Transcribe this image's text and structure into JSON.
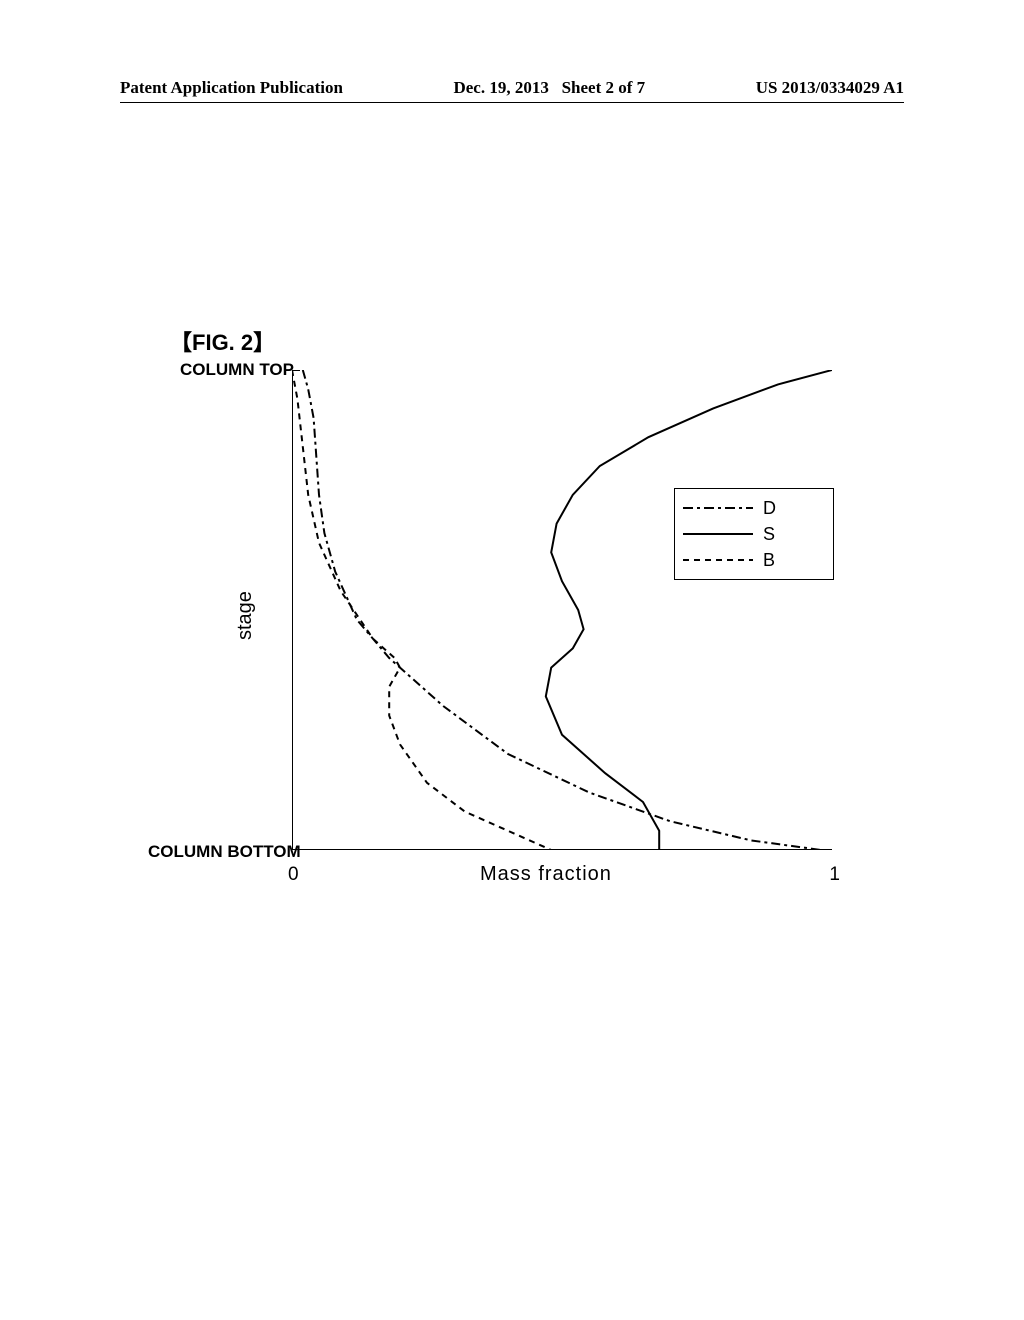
{
  "header": {
    "pub_label": "Patent Application Publication",
    "pub_date": "Dec. 19, 2013",
    "sheet": "Sheet 2 of 7",
    "pub_number": "US 2013/0334029 A1"
  },
  "figure": {
    "label_prefix": "【",
    "label_text": "FIG. 2",
    "label_suffix": "】"
  },
  "chart": {
    "type": "line",
    "y_top": "COLUMN TOP",
    "y_bottom": "COLUMN BOTTOM",
    "y_axis_title": "stage",
    "x_axis_title": "Mass fraction",
    "x_tick_min": "0",
    "x_tick_max": "1",
    "xlim": [
      0,
      1
    ],
    "background_color": "#ffffff",
    "axis_color": "#000000",
    "axis_width": 2,
    "series": {
      "D": {
        "label": "D",
        "color": "#000000",
        "width": 2,
        "dash": "9 4 3 4",
        "dash_legend": "10 4 3 4",
        "points": [
          [
            0.02,
            0.0
          ],
          [
            0.03,
            0.04
          ],
          [
            0.04,
            0.1
          ],
          [
            0.045,
            0.18
          ],
          [
            0.05,
            0.26
          ],
          [
            0.06,
            0.34
          ],
          [
            0.08,
            0.42
          ],
          [
            0.12,
            0.52
          ],
          [
            0.18,
            0.6
          ],
          [
            0.28,
            0.7
          ],
          [
            0.4,
            0.8
          ],
          [
            0.55,
            0.88
          ],
          [
            0.7,
            0.94
          ],
          [
            0.85,
            0.98
          ],
          [
            0.98,
            1.0
          ]
        ]
      },
      "S": {
        "label": "S",
        "color": "#000000",
        "width": 2,
        "dash": "none",
        "points": [
          [
            1.0,
            0.0
          ],
          [
            0.9,
            0.03
          ],
          [
            0.78,
            0.08
          ],
          [
            0.66,
            0.14
          ],
          [
            0.57,
            0.2
          ],
          [
            0.52,
            0.26
          ],
          [
            0.49,
            0.32
          ],
          [
            0.48,
            0.38
          ],
          [
            0.5,
            0.44
          ],
          [
            0.53,
            0.5
          ],
          [
            0.54,
            0.54
          ],
          [
            0.52,
            0.58
          ],
          [
            0.48,
            0.62
          ],
          [
            0.47,
            0.68
          ],
          [
            0.5,
            0.76
          ],
          [
            0.58,
            0.84
          ],
          [
            0.65,
            0.9
          ],
          [
            0.68,
            0.96
          ],
          [
            0.68,
            1.0
          ]
        ]
      },
      "B": {
        "label": "B",
        "color": "#000000",
        "width": 2,
        "dash": "6 5",
        "points": [
          [
            0.0,
            0.0
          ],
          [
            0.01,
            0.06
          ],
          [
            0.02,
            0.16
          ],
          [
            0.03,
            0.26
          ],
          [
            0.05,
            0.36
          ],
          [
            0.09,
            0.46
          ],
          [
            0.15,
            0.56
          ],
          [
            0.19,
            0.6
          ],
          [
            0.2,
            0.62
          ],
          [
            0.18,
            0.66
          ],
          [
            0.18,
            0.72
          ],
          [
            0.2,
            0.78
          ],
          [
            0.25,
            0.86
          ],
          [
            0.32,
            0.92
          ],
          [
            0.42,
            0.97
          ],
          [
            0.48,
            1.0
          ]
        ]
      }
    },
    "legend": {
      "order": [
        "D",
        "S",
        "B"
      ],
      "border_color": "#000000"
    }
  }
}
